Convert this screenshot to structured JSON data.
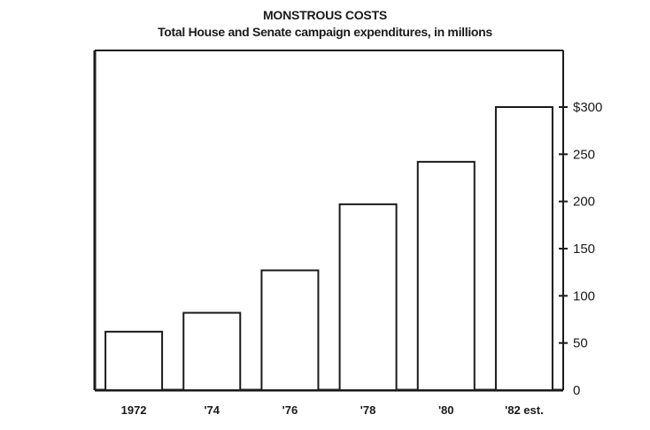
{
  "chart_data": {
    "type": "bar",
    "title": "MONSTROUS COSTS",
    "subtitle": "Total House and Senate campaign expenditures, in millions",
    "categories": [
      "1972",
      "'74",
      "'76",
      "'78",
      "'80",
      "'82 est."
    ],
    "values": [
      62,
      82,
      127,
      197,
      242,
      300
    ],
    "ylim": [
      0,
      360
    ],
    "yticks": [
      0,
      50,
      100,
      150,
      200,
      250,
      300
    ],
    "ytick_labels": [
      "0",
      "50",
      "100",
      "150",
      "200",
      "250",
      "$300"
    ],
    "axis_side": "right",
    "grid": false,
    "colors": {
      "bar_fill": "#ffffff",
      "bar_stroke": "#1a1a1a",
      "text": "#1a1a1a"
    }
  }
}
